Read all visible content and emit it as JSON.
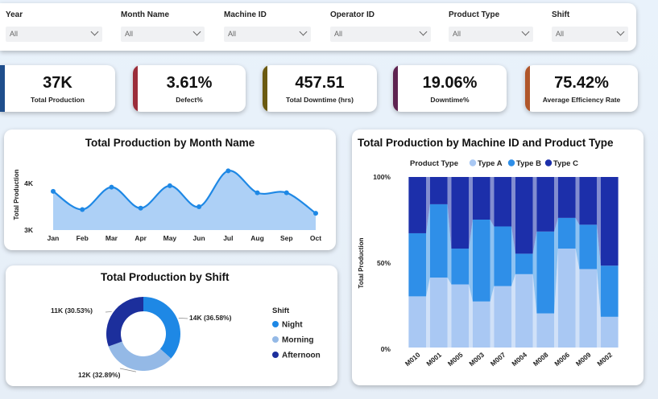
{
  "filters": [
    {
      "label": "Year",
      "value": "All"
    },
    {
      "label": "Month Name",
      "value": "All"
    },
    {
      "label": "Machine ID",
      "value": "All"
    },
    {
      "label": "Operator ID",
      "value": "All"
    },
    {
      "label": "Product Type",
      "value": "All"
    },
    {
      "label": "Shift",
      "value": "All"
    }
  ],
  "kpis": [
    {
      "value": "37K",
      "label": "Total Production",
      "color": "#1f4e8c"
    },
    {
      "value": "3.61%",
      "label": "Defect%",
      "color": "#9b2d3a"
    },
    {
      "value": "457.51",
      "label": "Total Downtime (hrs)",
      "color": "#6b5a10"
    },
    {
      "value": "19.06%",
      "label": "Downtime%",
      "color": "#5e2350"
    },
    {
      "value": "75.42%",
      "label": "Average Efficiency Rate",
      "color": "#b0562a"
    }
  ],
  "chart_data": [
    {
      "type": "area",
      "title": "Total Production by Month Name",
      "xlabel": "",
      "ylabel": "Total Production",
      "categories": [
        "Jan",
        "Feb",
        "Mar",
        "Apr",
        "May",
        "Jun",
        "Jul",
        "Aug",
        "Sep",
        "Oct"
      ],
      "values": [
        3830,
        3440,
        3920,
        3470,
        3950,
        3500,
        4270,
        3800,
        3800,
        3360
      ],
      "ylim": [
        3000,
        4000
      ],
      "yticks": [
        "4K",
        "3K"
      ],
      "color": "#1e88e5",
      "fill": "#a9cdf5"
    },
    {
      "type": "bar",
      "title": "Total Production by Machine ID and Product Type",
      "ylabel": "Total Production",
      "legend_title": "Product Type",
      "legend_position": "top",
      "stacked": "percent",
      "categories": [
        "M010",
        "M001",
        "M005",
        "M003",
        "M007",
        "M004",
        "M008",
        "M006",
        "M009",
        "M002"
      ],
      "yticks": [
        "100%",
        "50%",
        "0%"
      ],
      "series": [
        {
          "name": "Type A",
          "color": "#a9c8f3",
          "values": [
            30,
            41,
            37,
            27,
            36,
            43,
            20,
            58,
            46,
            18
          ]
        },
        {
          "name": "Type B",
          "color": "#2f8fe8",
          "values": [
            37,
            43,
            21,
            48,
            35,
            12,
            48,
            18,
            26,
            30
          ]
        },
        {
          "name": "Type C",
          "color": "#1c2faa",
          "values": [
            33,
            16,
            42,
            25,
            29,
            45,
            32,
            24,
            28,
            52
          ]
        }
      ]
    },
    {
      "type": "pie",
      "title": "Total Production by Shift",
      "legend_title": "Shift",
      "legend_position": "right",
      "slices": [
        {
          "name": "Night",
          "value": 36.58,
          "label": "14K (36.58%)",
          "color": "#1e88e5"
        },
        {
          "name": "Morning",
          "value": 32.89,
          "label": "12K (32.89%)",
          "color": "#94b9e6"
        },
        {
          "name": "Afternoon",
          "value": 30.53,
          "label": "11K (30.53%)",
          "color": "#1c2f9c"
        }
      ]
    }
  ]
}
